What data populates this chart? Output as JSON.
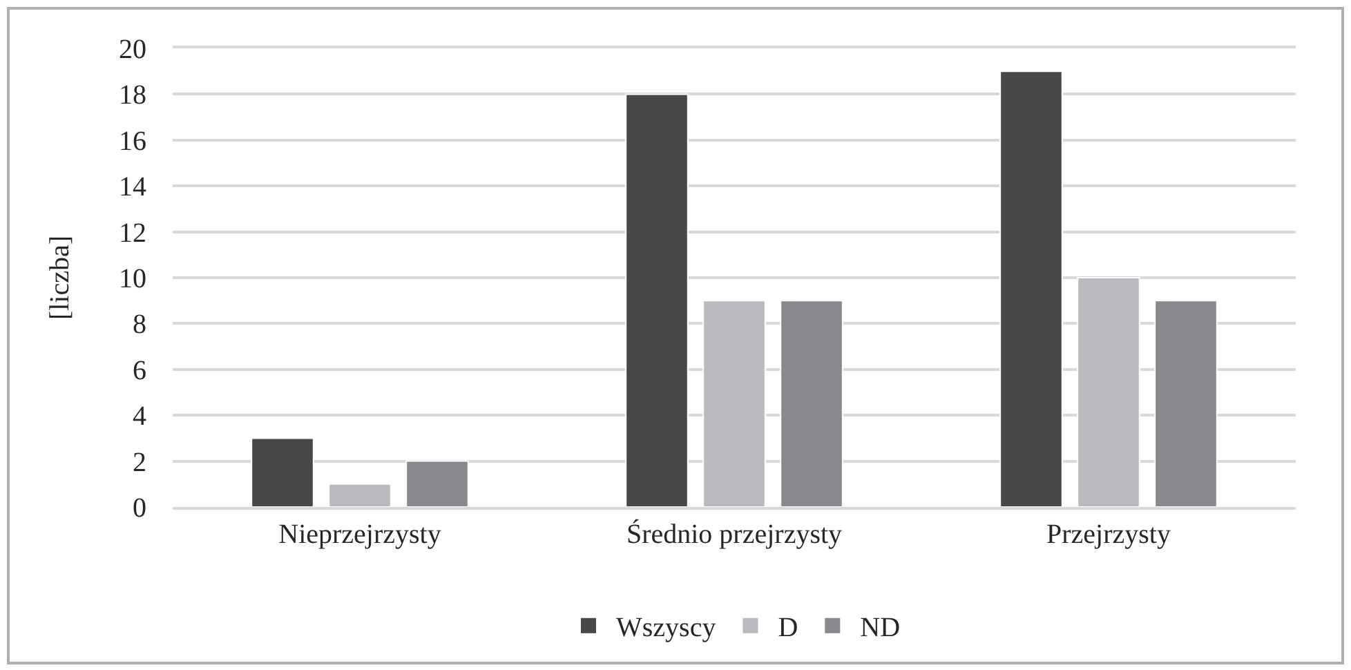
{
  "chart_data": {
    "type": "bar",
    "ylabel": "[liczba]",
    "categories": [
      "Nieprzejrzysty",
      "Średnio przejrzysty",
      "Przejrzysty"
    ],
    "series": [
      {
        "name": "Wszyscy",
        "color": "#47484a",
        "values": [
          3,
          18,
          19
        ]
      },
      {
        "name": "D",
        "color": "#b9babd",
        "values": [
          1,
          9,
          10
        ]
      },
      {
        "name": "ND",
        "color": "#88898c",
        "values": [
          2,
          9,
          9
        ]
      }
    ],
    "ylim": [
      0,
      20
    ],
    "yticks": [
      0,
      2,
      4,
      6,
      8,
      10,
      12,
      14,
      16,
      18,
      20
    ],
    "grid": "y",
    "legend": "bottom"
  }
}
